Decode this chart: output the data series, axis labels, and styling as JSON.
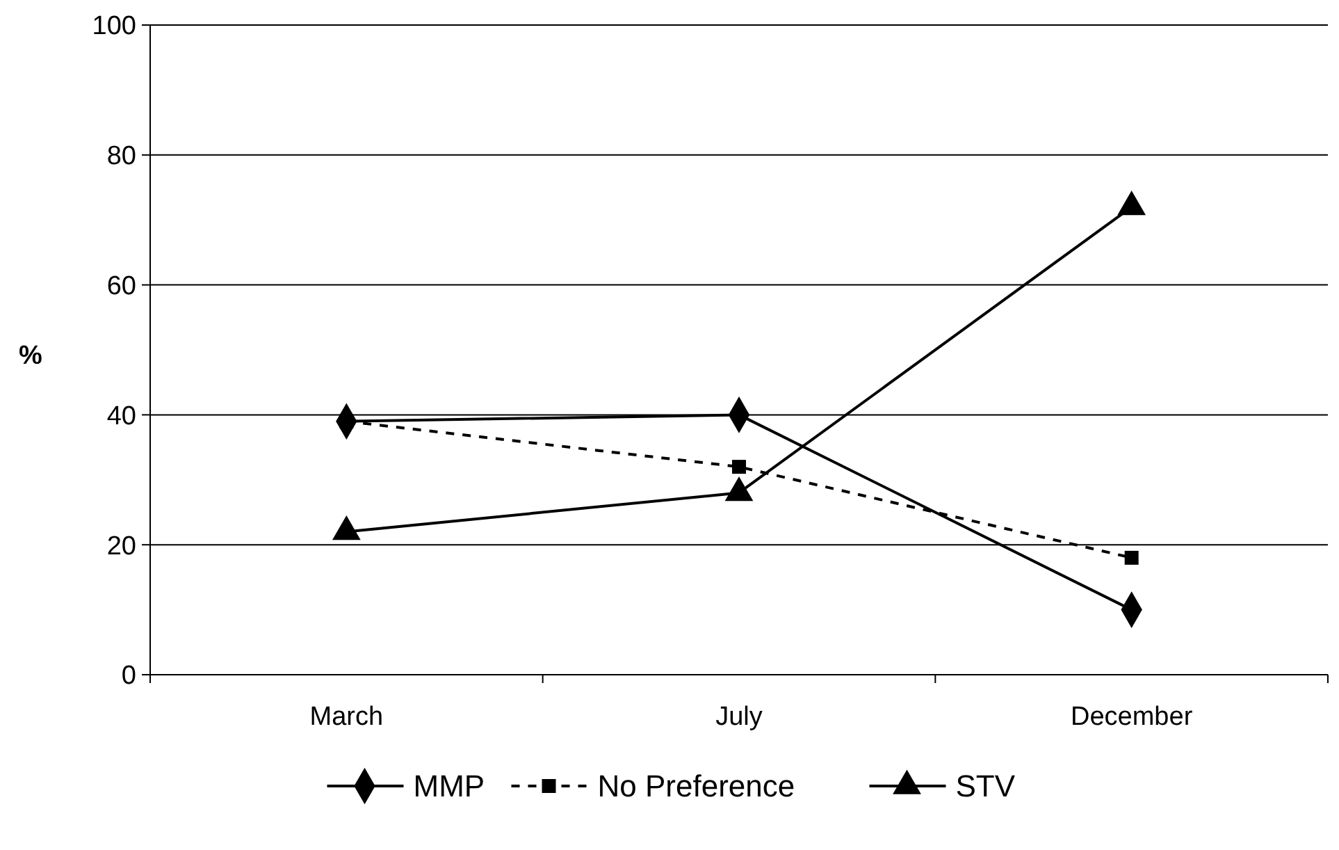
{
  "chart_data": {
    "type": "line",
    "ylabel": "%",
    "categories": [
      "March",
      "July",
      "December"
    ],
    "series": [
      {
        "name": "MMP",
        "color": "#000000",
        "values": [
          39,
          40,
          10
        ],
        "marker": "diamond",
        "line_style": "solid"
      },
      {
        "name": "No Preference",
        "color": "#000000",
        "values": [
          39,
          32,
          18
        ],
        "marker": "square",
        "line_style": "dashed"
      },
      {
        "name": "STV",
        "color": "#000000",
        "values": [
          22,
          28,
          72
        ],
        "marker": "triangle",
        "line_style": "solid"
      }
    ],
    "ylim": [
      0,
      100
    ],
    "yticks": [
      0,
      20,
      40,
      60,
      80,
      100
    ],
    "grid": "y",
    "legend": "bottom"
  }
}
